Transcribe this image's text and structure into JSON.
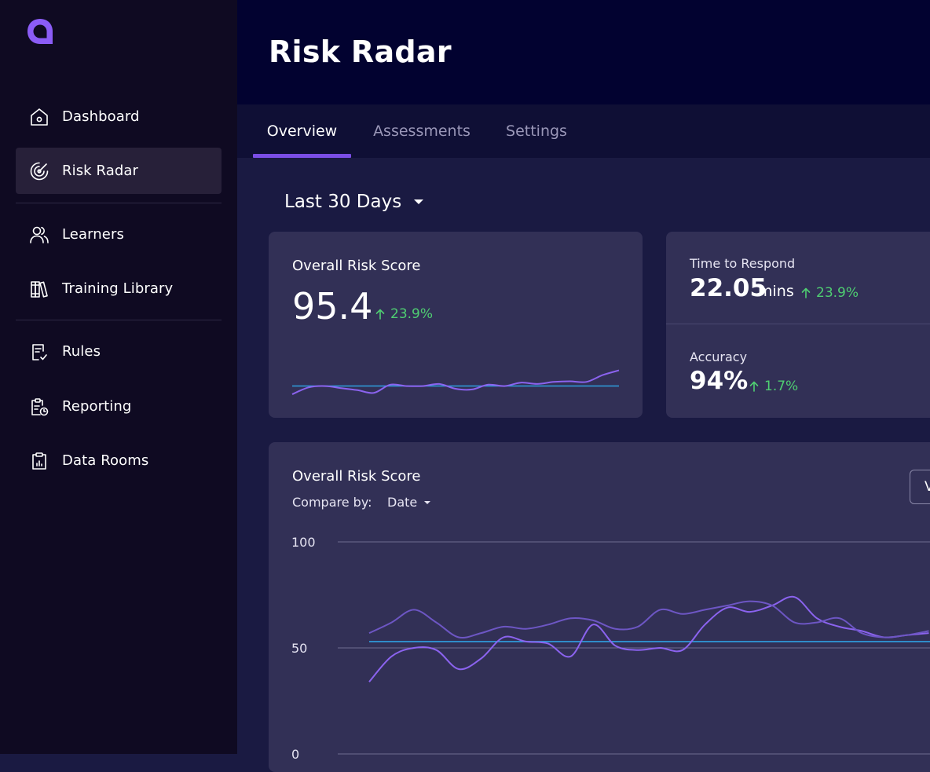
{
  "sidebar": {
    "items": [
      {
        "label": "Dashboard",
        "icon": "home-icon"
      },
      {
        "label": "Risk Radar",
        "icon": "radar-icon",
        "active": true
      },
      {
        "label": "Learners",
        "icon": "users-icon"
      },
      {
        "label": "Training Library",
        "icon": "books-icon"
      },
      {
        "label": "Rules",
        "icon": "rules-icon"
      },
      {
        "label": "Reporting",
        "icon": "report-clock-icon"
      },
      {
        "label": "Data Rooms",
        "icon": "clipboard-chart-icon"
      }
    ]
  },
  "header": {
    "title": "Risk Radar"
  },
  "tabs": [
    {
      "label": "Overview",
      "active": true
    },
    {
      "label": "Assessments"
    },
    {
      "label": "Settings"
    }
  ],
  "filter": {
    "range": "Last 30 Days"
  },
  "risk_card": {
    "title": "Overall Risk Score",
    "value": "95.4",
    "delta": "23.9%"
  },
  "metrics": [
    {
      "label": "Time to Respond",
      "value": "22.05",
      "unit": "mins",
      "delta": "23.9%"
    },
    {
      "label": "Accuracy",
      "value": "94%",
      "delta": "1.7%"
    }
  ],
  "chart_card": {
    "title": "Overall Risk Score",
    "compare_label": "Compare by:",
    "compare_value": "Date",
    "button_label": "View"
  },
  "colors": {
    "accent": "#7b4ee6",
    "positive": "#4fce72",
    "baseline": "#2f9fe0",
    "series_primary": "#8b63ef",
    "series_secondary": "#6d56c4"
  },
  "chart_data": [
    {
      "type": "line",
      "title": "Overall Risk Score",
      "x": [
        0,
        1,
        2,
        3,
        4,
        5,
        6,
        7,
        8,
        9,
        10,
        11,
        12,
        13,
        14,
        15,
        16,
        17,
        18,
        19,
        20
      ],
      "series": [
        {
          "values": [
            38,
            48,
            50,
            47,
            44,
            40,
            52,
            50,
            50,
            53,
            46,
            45,
            52,
            50,
            55,
            53,
            56,
            57,
            56,
            66,
            73
          ]
        }
      ],
      "reference_line": 50
    },
    {
      "type": "line",
      "title": "Overall Risk Score",
      "xlabel": "",
      "ylabel": "",
      "yticks": [
        0,
        50,
        100
      ],
      "ylim": [
        0,
        100
      ],
      "x": [
        0,
        1,
        2,
        3,
        4,
        5,
        6,
        7,
        8,
        9,
        10,
        11,
        12,
        13,
        14,
        15,
        16,
        17,
        18,
        19,
        20,
        21,
        22,
        23,
        24,
        25
      ],
      "series": [
        {
          "values": [
            34,
            46,
            50,
            49,
            40,
            45,
            55,
            53,
            52,
            46,
            61,
            51,
            49,
            50,
            49,
            61,
            69,
            67,
            70,
            74,
            64,
            60,
            58,
            55,
            56,
            57
          ]
        },
        {
          "values": [
            57,
            62,
            68,
            62,
            55,
            57,
            60,
            59,
            61,
            64,
            63,
            59,
            60,
            68,
            66,
            68,
            70,
            72,
            70,
            62,
            62,
            64,
            57,
            55,
            56,
            58
          ]
        }
      ],
      "reference_line": 53
    }
  ]
}
